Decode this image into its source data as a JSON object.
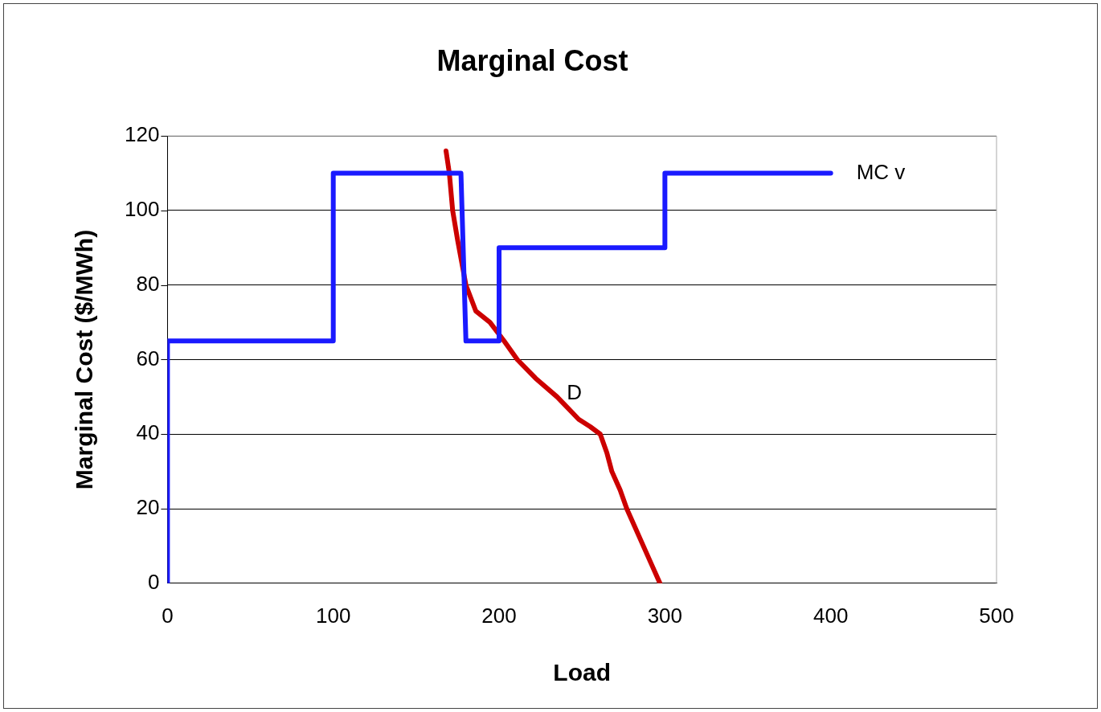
{
  "chart_data": {
    "type": "line",
    "title": "Marginal Cost",
    "xlabel": "Load",
    "ylabel": "Marginal Cost ($/MWh)",
    "xlim": [
      0,
      500
    ],
    "xticks": [
      0,
      100,
      200,
      300,
      400,
      500
    ],
    "ylim": [
      0,
      120
    ],
    "yticks": [
      0,
      20,
      40,
      60,
      80,
      100,
      120
    ],
    "grid": "y",
    "legend": false,
    "marker": "none",
    "series": [
      {
        "name": "MC v",
        "color": "#1a1aff",
        "x": [
          0,
          0,
          100,
          100,
          177,
          180,
          200,
          200,
          300,
          300,
          400
        ],
        "values": [
          0,
          65,
          65,
          110,
          110,
          65,
          65,
          90,
          90,
          110,
          110
        ]
      },
      {
        "name": "D",
        "color": "#cc0000",
        "x": [
          168,
          170,
          172,
          175,
          180,
          186,
          194.5,
          203,
          211,
          222,
          235,
          248,
          255,
          261,
          265,
          268,
          273,
          277,
          285,
          292,
          297
        ],
        "values": [
          116,
          110,
          100,
          92,
          80,
          73,
          70,
          65,
          60,
          55,
          50,
          44,
          42,
          40,
          35,
          30,
          25,
          20,
          12,
          5,
          0
        ]
      }
    ]
  }
}
